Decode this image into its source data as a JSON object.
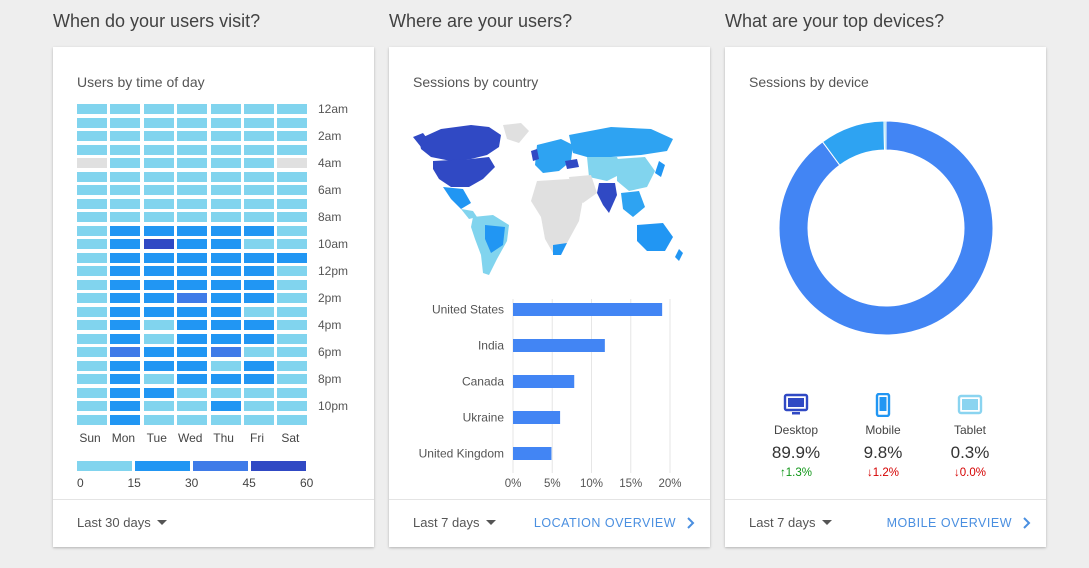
{
  "colors": {
    "heat": [
      "#e0e0e0",
      "#81d4ee",
      "#2196f3",
      "#3f7be8",
      "#3049c4"
    ],
    "bar": "#4285f4",
    "donut": [
      "#4285f4",
      "#2ea3f2",
      "#8ad4f0"
    ],
    "link": "#4a8fe0",
    "up": "#109618",
    "down": "#d50000"
  },
  "time_of_day": {
    "section_title": "When do your users visit?",
    "card_title": "Users by time of day",
    "days": [
      "Sun",
      "Mon",
      "Tue",
      "Wed",
      "Thu",
      "Fri",
      "Sat"
    ],
    "hour_labels": [
      "12am",
      "2am",
      "4am",
      "6am",
      "8am",
      "10am",
      "12pm",
      "2pm",
      "4pm",
      "6pm",
      "8pm",
      "10pm"
    ],
    "legend_ticks": [
      "0",
      "15",
      "30",
      "45",
      "60"
    ],
    "heat_levels": [
      [
        1,
        1,
        1,
        1,
        1,
        1,
        1
      ],
      [
        1,
        1,
        1,
        1,
        1,
        1,
        1
      ],
      [
        1,
        1,
        1,
        1,
        1,
        1,
        1
      ],
      [
        1,
        1,
        1,
        1,
        1,
        1,
        1
      ],
      [
        0,
        1,
        1,
        1,
        1,
        1,
        0
      ],
      [
        1,
        1,
        1,
        1,
        1,
        1,
        1
      ],
      [
        1,
        1,
        1,
        1,
        1,
        1,
        1
      ],
      [
        1,
        1,
        1,
        1,
        1,
        1,
        1
      ],
      [
        1,
        1,
        1,
        1,
        1,
        1,
        1
      ],
      [
        1,
        2,
        2,
        2,
        2,
        2,
        1
      ],
      [
        1,
        2,
        4,
        2,
        2,
        1,
        1
      ],
      [
        1,
        2,
        2,
        2,
        2,
        2,
        2
      ],
      [
        1,
        2,
        2,
        2,
        2,
        2,
        1
      ],
      [
        1,
        2,
        2,
        2,
        2,
        2,
        1
      ],
      [
        1,
        2,
        2,
        3,
        2,
        2,
        1
      ],
      [
        1,
        2,
        2,
        2,
        2,
        1,
        1
      ],
      [
        1,
        2,
        1,
        2,
        2,
        2,
        1
      ],
      [
        1,
        2,
        1,
        2,
        2,
        2,
        1
      ],
      [
        1,
        3,
        2,
        2,
        3,
        1,
        1
      ],
      [
        1,
        2,
        2,
        2,
        1,
        2,
        1
      ],
      [
        1,
        2,
        1,
        2,
        2,
        2,
        1
      ],
      [
        1,
        2,
        2,
        1,
        1,
        1,
        1
      ],
      [
        1,
        2,
        1,
        1,
        2,
        1,
        1
      ],
      [
        1,
        2,
        1,
        1,
        1,
        1,
        1
      ]
    ],
    "range_label": "Last 30 days"
  },
  "country": {
    "section_title": "Where are your users?",
    "card_title": "Sessions by country",
    "chart_data": {
      "type": "bar",
      "categories": [
        "United States",
        "India",
        "Canada",
        "Ukraine",
        "United Kingdom"
      ],
      "values": [
        19,
        11.7,
        7.8,
        6,
        4.9
      ],
      "ticks": [
        "0%",
        "5%",
        "10%",
        "15%",
        "20%"
      ],
      "xlim": [
        0,
        20
      ]
    },
    "range_label": "Last 7 days",
    "overview_label": "LOCATION OVERVIEW"
  },
  "devices": {
    "section_title": "What are your top devices?",
    "card_title": "Sessions by device",
    "chart_data": {
      "type": "pie",
      "categories": [
        "Desktop",
        "Mobile",
        "Tablet"
      ],
      "values": [
        89.9,
        9.8,
        0.3
      ]
    },
    "items": [
      {
        "name": "Desktop",
        "value": "89.9%",
        "change": "1.3%",
        "dir": "up",
        "icon": "desktop-icon"
      },
      {
        "name": "Mobile",
        "value": "9.8%",
        "change": "1.2%",
        "dir": "down",
        "icon": "mobile-icon"
      },
      {
        "name": "Tablet",
        "value": "0.3%",
        "change": "0.0%",
        "dir": "down",
        "icon": "tablet-icon"
      }
    ],
    "range_label": "Last 7 days",
    "overview_label": "MOBILE OVERVIEW"
  }
}
